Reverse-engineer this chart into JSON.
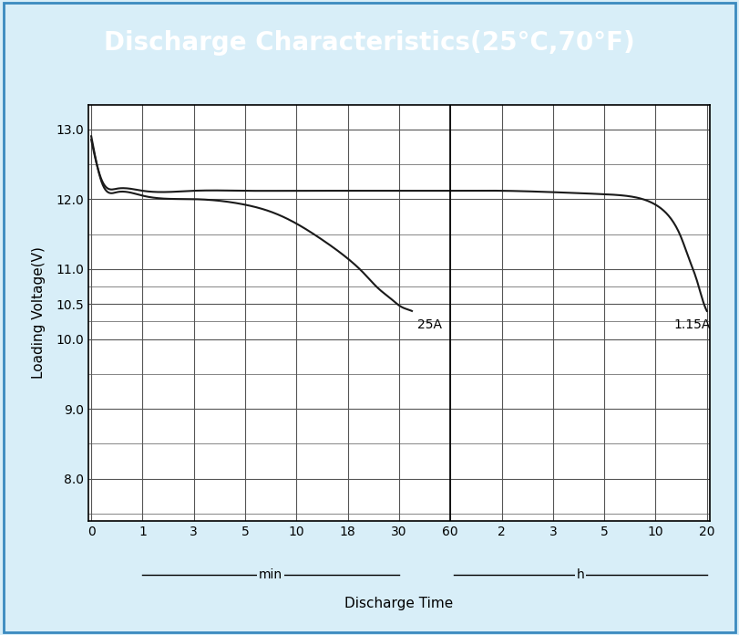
{
  "title": "Discharge Characteristics(25°C,70°F)",
  "title_bg_color": "#4ec5f0",
  "title_text_color": "#ffffff",
  "ylabel": "Loading Voltage(V)",
  "xlabel": "Discharge Time",
  "y_ticks": [
    8.0,
    9.0,
    10.0,
    10.5,
    11.0,
    12.0,
    13.0
  ],
  "y_minor_ticks": [
    7.5,
    8.5,
    9.5,
    10.25,
    10.75,
    11.5,
    12.5
  ],
  "y_min": 7.4,
  "y_max": 13.35,
  "x_tick_labels": [
    "0",
    "1",
    "3",
    "5",
    "10",
    "18",
    "30",
    "60",
    "2",
    "3",
    "5",
    "10",
    "20"
  ],
  "x_tick_positions": [
    0,
    1,
    2,
    3,
    4,
    5,
    6,
    7,
    8,
    9,
    10,
    11,
    12
  ],
  "min_section_label": "min",
  "h_section_label": "h",
  "annotation_25A": "25A",
  "annotation_115A": "1.15A",
  "line_color": "#1a1a1a",
  "grid_color": "#555555",
  "bg_color": "#ffffff",
  "outer_bg_color": "#d8eef8",
  "curve25A_x": [
    0,
    0.08,
    0.2,
    0.5,
    1.0,
    2.0,
    3.0,
    3.5,
    4.0,
    4.5,
    5.0,
    5.3,
    5.6,
    5.85,
    6.0,
    6.1,
    6.18,
    6.25
  ],
  "curve25A_y": [
    12.9,
    12.6,
    12.25,
    12.1,
    12.05,
    12.0,
    11.92,
    11.82,
    11.65,
    11.42,
    11.15,
    10.95,
    10.72,
    10.57,
    10.48,
    10.44,
    10.42,
    10.4
  ],
  "curve115A_x": [
    0,
    0.08,
    0.2,
    0.5,
    1.0,
    2.0,
    3.0,
    4.0,
    5.0,
    6.0,
    7.0,
    8.0,
    9.0,
    10.0,
    10.5,
    11.0,
    11.3,
    11.5,
    11.65,
    11.8,
    11.9,
    12.0
  ],
  "curve115A_y": [
    12.85,
    12.58,
    12.28,
    12.15,
    12.12,
    12.12,
    12.12,
    12.12,
    12.12,
    12.12,
    12.12,
    12.12,
    12.1,
    12.07,
    12.04,
    11.92,
    11.72,
    11.45,
    11.15,
    10.85,
    10.6,
    10.4
  ],
  "divider_x": 7,
  "ann25_x": 6.35,
  "ann25_y": 10.3,
  "ann115_x": 11.35,
  "ann115_y": 10.3
}
